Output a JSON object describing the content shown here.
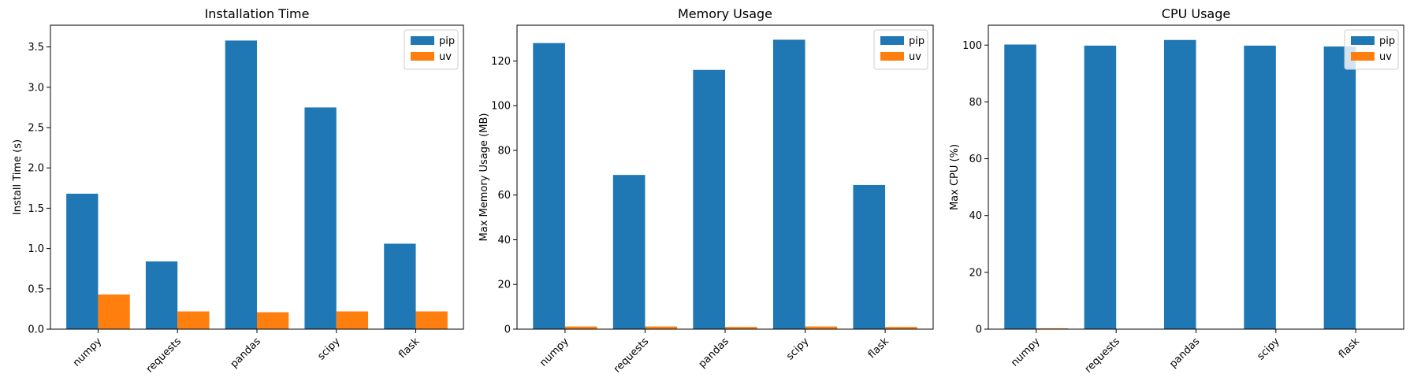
{
  "colors": {
    "pip": "#1f77b4",
    "uv": "#ff7f0e"
  },
  "chart_data": [
    {
      "type": "bar",
      "title": "Installation Time",
      "xlabel": "",
      "ylabel": "Install Time (s)",
      "categories": [
        "numpy",
        "requests",
        "pandas",
        "scipy",
        "flask"
      ],
      "series": [
        {
          "name": "pip",
          "values": [
            1.68,
            0.84,
            3.58,
            2.75,
            1.06
          ]
        },
        {
          "name": "uv",
          "values": [
            0.43,
            0.22,
            0.21,
            0.22,
            0.22
          ]
        }
      ],
      "ylim": [
        0,
        3.77
      ],
      "yticks": [
        0.0,
        0.5,
        1.0,
        1.5,
        2.0,
        2.5,
        3.0,
        3.5
      ],
      "ytick_labels": [
        "0.0",
        "0.5",
        "1.0",
        "1.5",
        "2.0",
        "2.5",
        "3.0",
        "3.5"
      ],
      "legend": "top-right",
      "grid": false
    },
    {
      "type": "bar",
      "title": "Memory Usage",
      "xlabel": "",
      "ylabel": "Max Memory Usage (MB)",
      "categories": [
        "numpy",
        "requests",
        "pandas",
        "scipy",
        "flask"
      ],
      "series": [
        {
          "name": "pip",
          "values": [
            128,
            69,
            116,
            129.5,
            64.5
          ]
        },
        {
          "name": "uv",
          "values": [
            1.2,
            1.2,
            1.0,
            1.2,
            1.0
          ]
        }
      ],
      "ylim": [
        0,
        136
      ],
      "yticks": [
        0,
        20,
        40,
        60,
        80,
        100,
        120
      ],
      "ytick_labels": [
        "0",
        "20",
        "40",
        "60",
        "80",
        "100",
        "120"
      ],
      "legend": "top-right",
      "grid": false
    },
    {
      "type": "bar",
      "title": "CPU Usage",
      "xlabel": "",
      "ylabel": "Max CPU (%)",
      "categories": [
        "numpy",
        "requests",
        "pandas",
        "scipy",
        "flask"
      ],
      "series": [
        {
          "name": "pip",
          "values": [
            100.2,
            99.8,
            101.8,
            99.8,
            99.5
          ]
        },
        {
          "name": "uv",
          "values": [
            0.3,
            0,
            0,
            0,
            0
          ]
        }
      ],
      "ylim": [
        0,
        107
      ],
      "yticks": [
        0,
        20,
        40,
        60,
        80,
        100
      ],
      "ytick_labels": [
        "0",
        "20",
        "40",
        "60",
        "80",
        "100"
      ],
      "legend": "top-right",
      "grid": false
    }
  ]
}
